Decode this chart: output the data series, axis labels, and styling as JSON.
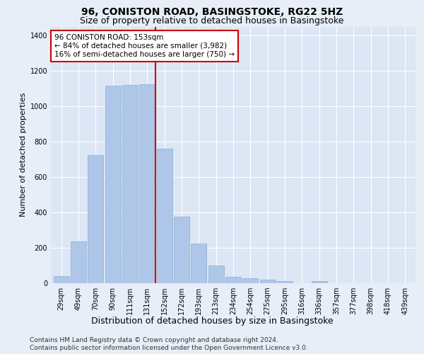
{
  "title": "96, CONISTON ROAD, BASINGSTOKE, RG22 5HZ",
  "subtitle": "Size of property relative to detached houses in Basingstoke",
  "xlabel": "Distribution of detached houses by size in Basingstoke",
  "ylabel": "Number of detached properties",
  "footer_line1": "Contains HM Land Registry data © Crown copyright and database right 2024.",
  "footer_line2": "Contains public sector information licensed under the Open Government Licence v3.0.",
  "categories": [
    "29sqm",
    "49sqm",
    "70sqm",
    "90sqm",
    "111sqm",
    "131sqm",
    "152sqm",
    "172sqm",
    "193sqm",
    "213sqm",
    "234sqm",
    "254sqm",
    "275sqm",
    "295sqm",
    "316sqm",
    "336sqm",
    "357sqm",
    "377sqm",
    "398sqm",
    "418sqm",
    "439sqm"
  ],
  "bar_values": [
    40,
    235,
    725,
    1115,
    1120,
    1125,
    760,
    375,
    225,
    100,
    38,
    28,
    22,
    12,
    0,
    14,
    0,
    0,
    0,
    0,
    0
  ],
  "bar_color": "#aec6e8",
  "bar_edge_color": "#8ab0d8",
  "vline_x": 6.0,
  "vline_color": "#cc0000",
  "annotation_text": "96 CONISTON ROAD: 153sqm\n← 84% of detached houses are smaller (3,982)\n16% of semi-detached houses are larger (750) →",
  "annotation_box_color": "#ffffff",
  "annotation_box_edge_color": "#cc0000",
  "ylim": [
    0,
    1450
  ],
  "yticks": [
    0,
    200,
    400,
    600,
    800,
    1000,
    1200,
    1400
  ],
  "background_color": "#e8eef7",
  "plot_background_color": "#dce6f5",
  "grid_color": "#ffffff",
  "title_fontsize": 10,
  "subtitle_fontsize": 9,
  "ylabel_fontsize": 8,
  "xlabel_fontsize": 9,
  "tick_fontsize": 7,
  "annotation_fontsize": 7.5,
  "footer_fontsize": 6.5
}
